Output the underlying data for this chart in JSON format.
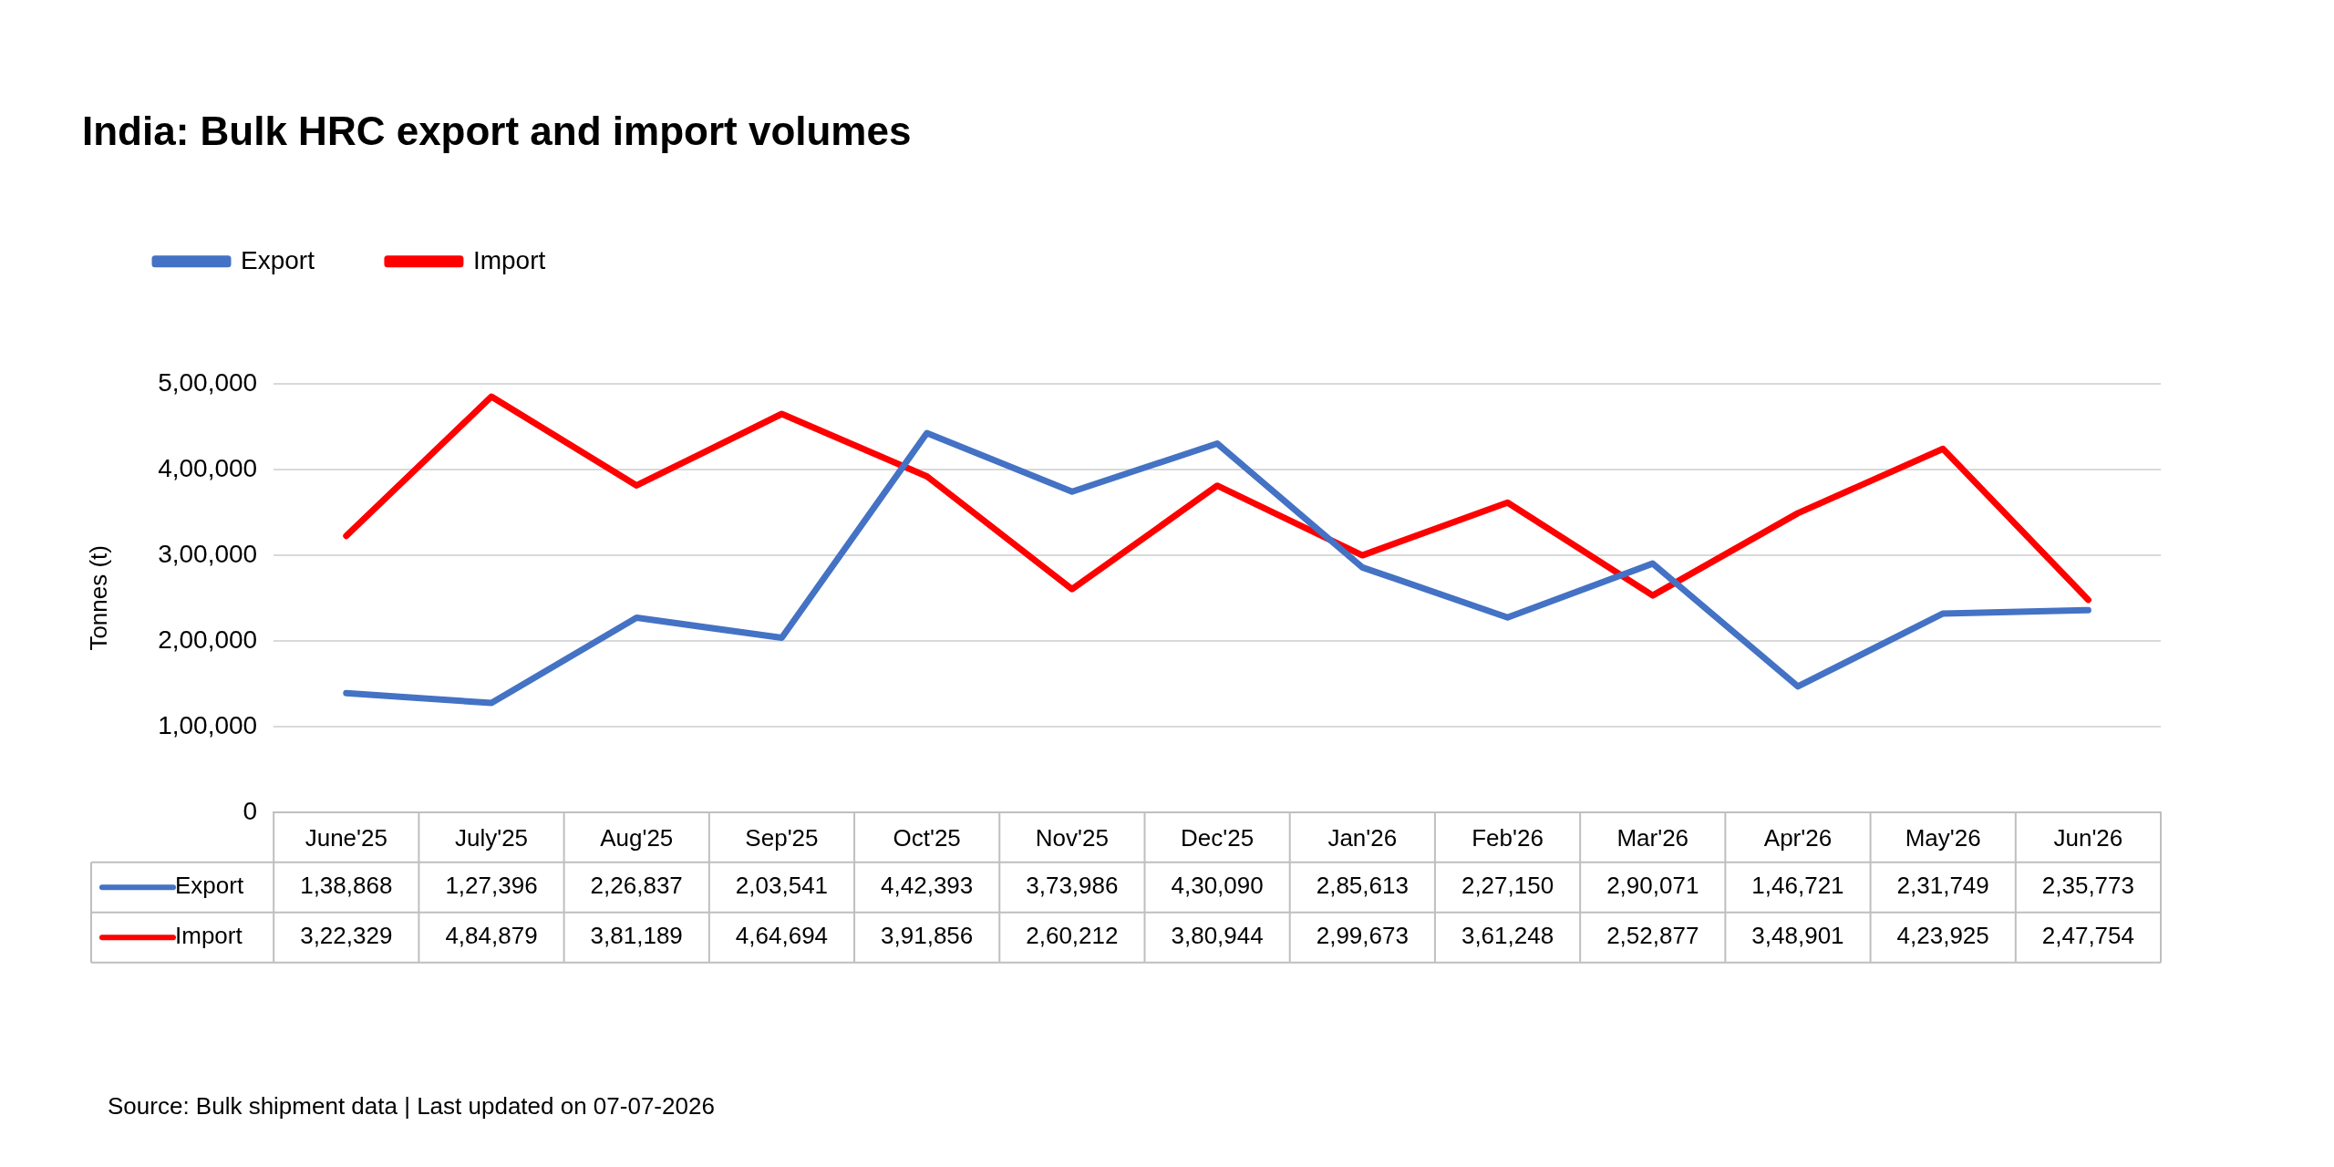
{
  "chart_data": {
    "type": "line",
    "title": "India: Bulk HRC export and import volumes",
    "ylabel": "Tonnes (t)",
    "categories": [
      "June'25",
      "July'25",
      "Aug'25",
      "Sep'25",
      "Oct'25",
      "Nov'25",
      "Dec'25",
      "Jan'26",
      "Feb'26",
      "Mar'26",
      "Apr'26",
      "May'26",
      "Jun'26"
    ],
    "series": [
      {
        "name": "Export",
        "color": "#4472c4",
        "values": [
          138868,
          127396,
          226837,
          203541,
          442393,
          373986,
          430090,
          285613,
          227150,
          290071,
          146721,
          231749,
          235773
        ],
        "value_labels": [
          "1,38,868",
          "1,27,396",
          "2,26,837",
          "2,03,541",
          "4,42,393",
          "3,73,986",
          "4,30,090",
          "2,85,613",
          "2,27,150",
          "2,90,071",
          "1,46,721",
          "2,31,749",
          "2,35,773"
        ]
      },
      {
        "name": "Import",
        "color": "#ff0000",
        "values": [
          322329,
          484879,
          381189,
          464694,
          391856,
          260212,
          380944,
          299673,
          361248,
          252877,
          348901,
          423925,
          247754
        ],
        "value_labels": [
          "3,22,329",
          "4,84,879",
          "3,81,189",
          "4,64,694",
          "3,91,856",
          "2,60,212",
          "3,80,944",
          "2,99,673",
          "3,61,248",
          "2,52,877",
          "3,48,901",
          "4,23,925",
          "2,47,754"
        ]
      }
    ],
    "ylim": [
      0,
      500000
    ],
    "yticks": [
      0,
      {
        "value": 100000,
        "label": "1,00,000"
      },
      {
        "value": 200000,
        "label": "2,00,000"
      },
      {
        "value": 300000,
        "label": "3,00,000"
      },
      {
        "value": 400000,
        "label": "4,00,000"
      },
      {
        "value": 500000,
        "label": "5,00,000"
      }
    ],
    "grid": "y",
    "legend": "top left",
    "marker": "none",
    "line_style": "solid",
    "annotations": [
      "Source: Bulk shipment data | Last updated on 07-07-2026"
    ]
  }
}
